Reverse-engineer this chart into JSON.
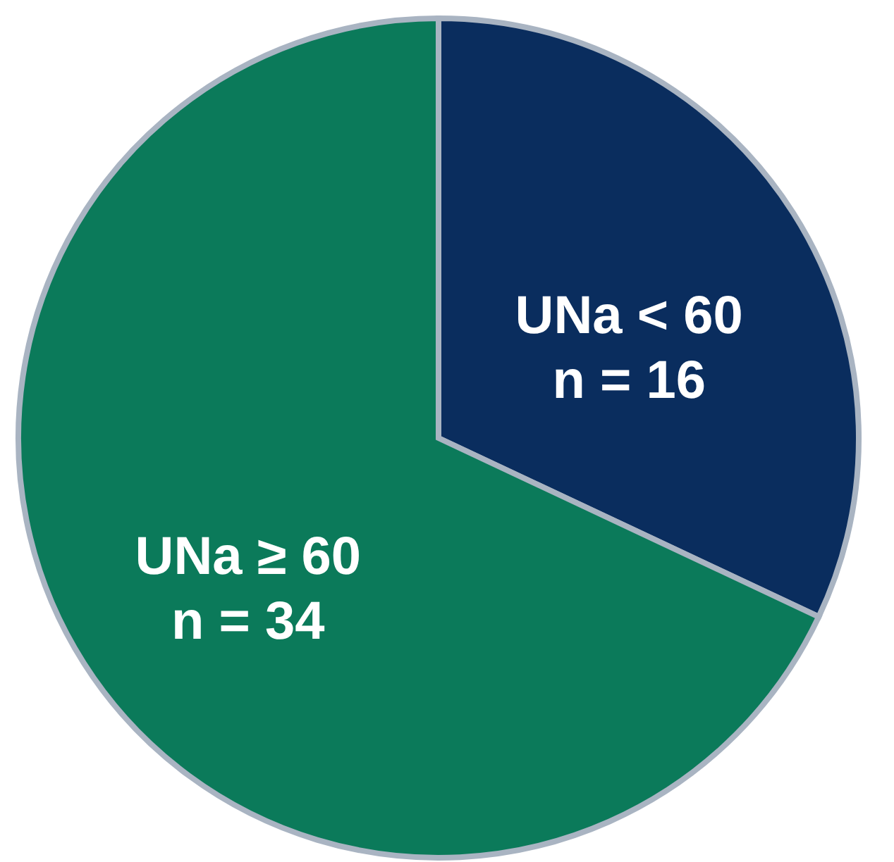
{
  "chart_data": {
    "type": "pie",
    "categories": [
      "UNa < 60",
      "UNa ≥ 60"
    ],
    "values": [
      16,
      34
    ],
    "value_labels": [
      "n = 16",
      "n = 34"
    ],
    "colors": [
      "#0a2d5e",
      "#0b7a5a"
    ],
    "legend": false
  }
}
